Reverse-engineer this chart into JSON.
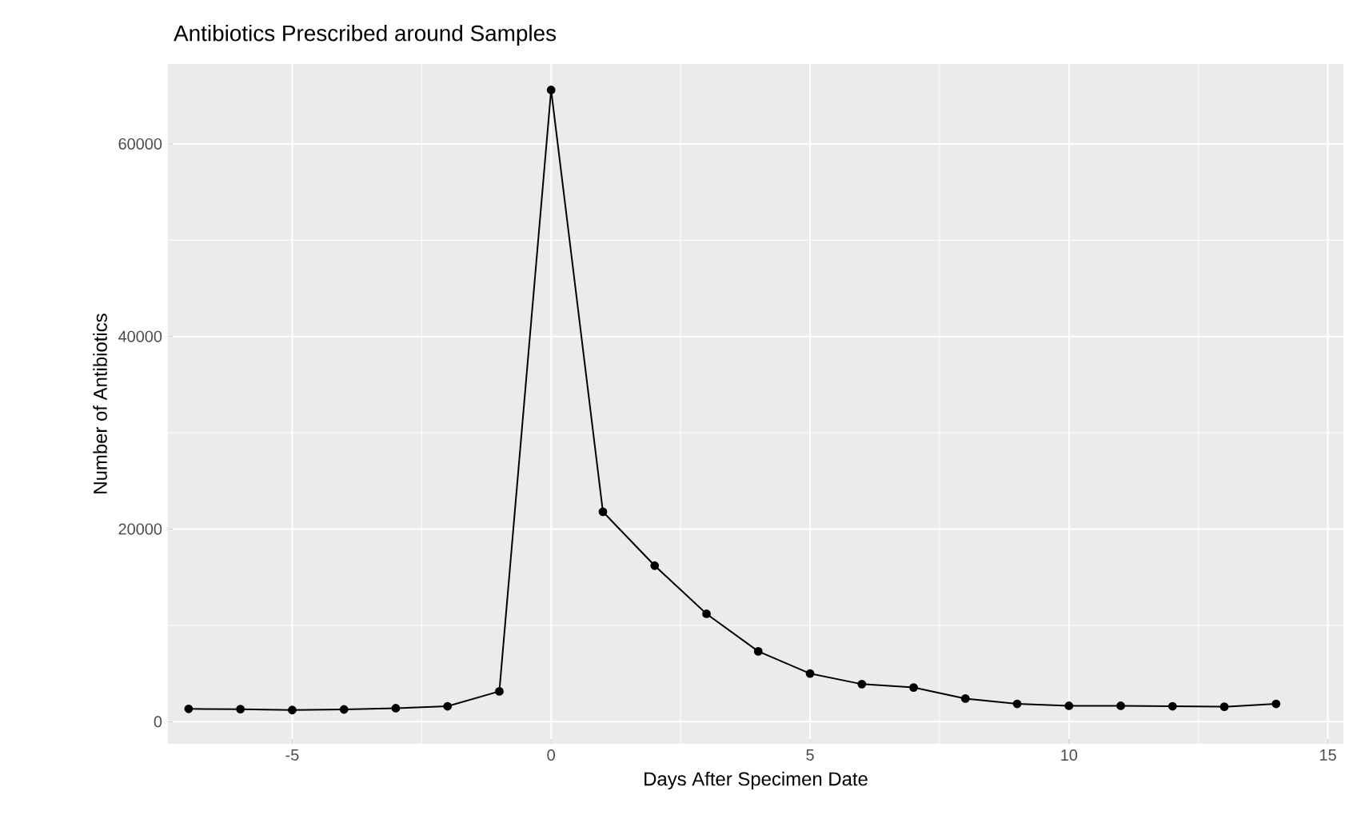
{
  "chart_data": {
    "type": "line",
    "title": "Antibiotics Prescribed around Samples",
    "xlabel": "Days After Specimen Date",
    "ylabel": "Number of Antibiotics",
    "x": [
      -7,
      -6,
      -5,
      -4,
      -3,
      -2,
      -1,
      0,
      1,
      2,
      3,
      4,
      5,
      6,
      7,
      8,
      9,
      10,
      11,
      12,
      13,
      14
    ],
    "series": [
      {
        "color": "#000000",
        "values": [
          1330,
          1300,
          1210,
          1270,
          1400,
          1600,
          3150,
          65600,
          21800,
          16200,
          11200,
          7300,
          5000,
          3900,
          3550,
          2400,
          1850,
          1650,
          1650,
          1600,
          1550,
          1850
        ]
      }
    ],
    "xlim": [
      -7.4,
      15.3
    ],
    "ylim": [
      -2300,
      68300
    ],
    "xticks": [
      -5,
      0,
      5,
      10,
      15
    ],
    "yticks": [
      0,
      20000,
      40000,
      60000
    ],
    "grid": true,
    "marker": "circle",
    "line_style": "solid"
  }
}
